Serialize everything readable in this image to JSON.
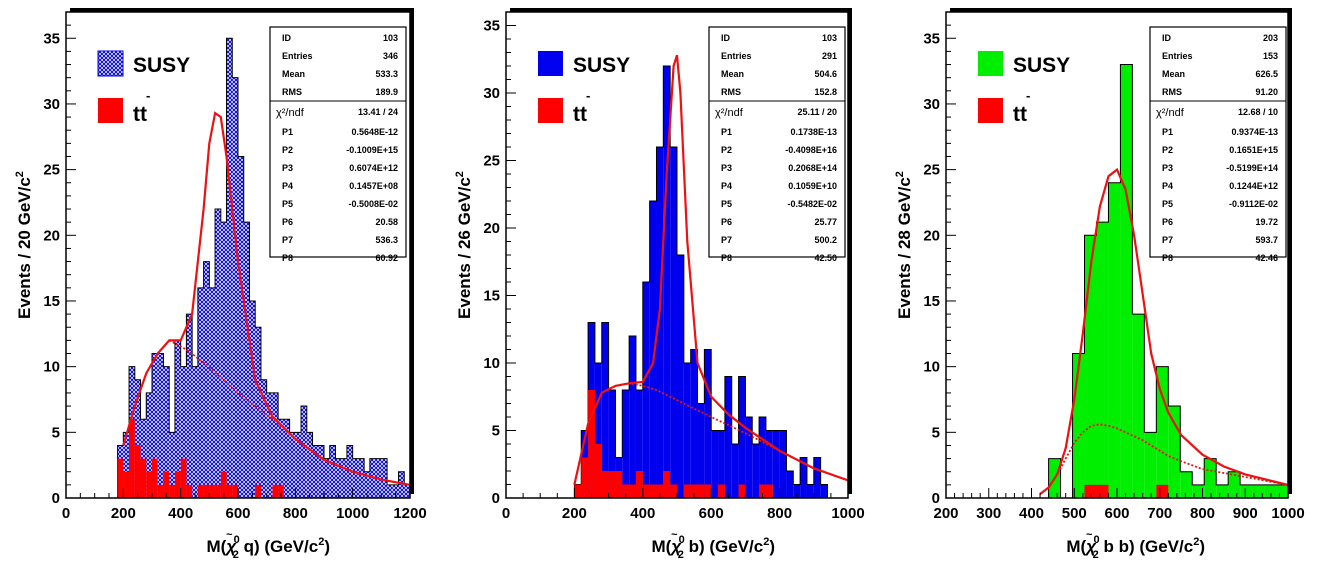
{
  "chart_data": [
    {
      "type": "bar",
      "hist_style": "hatch",
      "susy_color": "#0000ee",
      "ttbar_color": "#ff0000",
      "fit_color": "#ee1111",
      "legend": {
        "susy": "SUSY",
        "ttbar_bar": "-",
        "ttbar": "tt"
      },
      "ylabel": "Events / 20 GeV/c",
      "ylabel_sup": "2",
      "xlabel_parts": [
        "M(",
        "χ",
        "~",
        "0",
        "2",
        " q) (GeV/c",
        "2",
        ")"
      ],
      "xlim": [
        0,
        1200
      ],
      "ylim": [
        0,
        37
      ],
      "xticks": [
        0,
        200,
        400,
        600,
        800,
        1000,
        1200
      ],
      "yticks": [
        0,
        5,
        10,
        15,
        20,
        25,
        30,
        35
      ],
      "bin_width": 20,
      "hist_start": 180,
      "susy_values": [
        4,
        5,
        10,
        9,
        6,
        8,
        11,
        11,
        10,
        5,
        12,
        10,
        14,
        10,
        16,
        18,
        16,
        22,
        21,
        35,
        32,
        26,
        21,
        15,
        13,
        9,
        8,
        8,
        6,
        6,
        5,
        5,
        7,
        5,
        4,
        4,
        3,
        4,
        3,
        3,
        4,
        3,
        3,
        2,
        3,
        3,
        3,
        1,
        1,
        2,
        1,
        1,
        3,
        2,
        1,
        1,
        1,
        2,
        1,
        3,
        1
      ],
      "ttbar_values": [
        3,
        2,
        6,
        4,
        3,
        2,
        3,
        1,
        2,
        1,
        2,
        3,
        1,
        0,
        1,
        1,
        1,
        1,
        2,
        1,
        1,
        0,
        0,
        0,
        1,
        0,
        0,
        1,
        1,
        0,
        0
      ],
      "fit_x": [
        200,
        240,
        280,
        320,
        360,
        400,
        440,
        480,
        500,
        520,
        540,
        560,
        600,
        660,
        720,
        800,
        900,
        1000,
        1100,
        1200
      ],
      "fit_y": [
        4,
        7,
        9.5,
        11,
        12,
        12,
        14,
        22,
        27,
        29.3,
        29,
        26,
        18,
        9,
        6.2,
        4.5,
        2.9,
        2,
        1.4,
        1
      ],
      "bkg_x": [
        360,
        420,
        480,
        540,
        600,
        660,
        720,
        800,
        900,
        1000,
        1100,
        1200
      ],
      "bkg_y": [
        12,
        11.3,
        10.3,
        9.2,
        8,
        7,
        6,
        4.5,
        2.9,
        2,
        1.4,
        1
      ],
      "stats_top": [
        [
          "ID",
          "103"
        ],
        [
          "Entries",
          "346"
        ],
        [
          "Mean",
          "533.3"
        ],
        [
          "RMS",
          "189.9"
        ]
      ],
      "chi2": "13.41  /   24",
      "chi2_label": "χ²/ndf",
      "params": [
        [
          "P1",
          "0.5648E-12"
        ],
        [
          "P2",
          "-0.1009E+15"
        ],
        [
          "P3",
          "0.6074E+12"
        ],
        [
          "P4",
          "0.1457E+08"
        ],
        [
          "P5",
          "-0.5008E-02"
        ],
        [
          "P6",
          "20.58"
        ],
        [
          "P7",
          "536.3"
        ],
        [
          "P8",
          "60.92"
        ]
      ]
    },
    {
      "type": "bar",
      "hist_style": "solid",
      "susy_color": "#0000ee",
      "ttbar_color": "#ff0000",
      "fit_color": "#ee1111",
      "legend": {
        "susy": "SUSY",
        "ttbar_bar": "-",
        "ttbar": "tt"
      },
      "ylabel": "Events / 26 GeV/c",
      "ylabel_sup": "2",
      "xlabel_parts": [
        "M(",
        "χ",
        "~",
        "0",
        "2",
        " b) (GeV/c",
        "2",
        ")"
      ],
      "xlim": [
        0,
        1000
      ],
      "ylim": [
        0,
        36
      ],
      "xticks": [
        0,
        200,
        400,
        600,
        800,
        1000
      ],
      "yticks": [
        0,
        5,
        10,
        15,
        20,
        25,
        30,
        35
      ],
      "bin_width": 20,
      "hist_start": 200,
      "susy_values": [
        1,
        5,
        13,
        10,
        13,
        8,
        3,
        8,
        12,
        8,
        16,
        22,
        26,
        32,
        26,
        18,
        10,
        11,
        7,
        11,
        5,
        5,
        9,
        4,
        9,
        6,
        4,
        6,
        5,
        5,
        5,
        2,
        1,
        3,
        1,
        3,
        1
      ],
      "ttbar_values": [
        1,
        3,
        8,
        4,
        2,
        2,
        2,
        1,
        1,
        2,
        1,
        1,
        1,
        2,
        1,
        0,
        1,
        1,
        1,
        1,
        0,
        1,
        0,
        0,
        1,
        0,
        0,
        1,
        1
      ],
      "fit_x": [
        200,
        240,
        280,
        320,
        360,
        400,
        430,
        450,
        470,
        490,
        500,
        510,
        530,
        560,
        600,
        650,
        700,
        800,
        900,
        1000
      ],
      "fit_y": [
        1,
        5.5,
        7.8,
        8.3,
        8.5,
        8.6,
        10,
        14,
        24,
        32,
        32.8,
        30,
        19,
        10,
        7.5,
        6.2,
        5.2,
        3.5,
        2.2,
        1.3
      ],
      "bkg_x": [
        200,
        240,
        280,
        320,
        360,
        400,
        440,
        480,
        520,
        560,
        600,
        650,
        700,
        800,
        900,
        1000
      ],
      "bkg_y": [
        1,
        5.5,
        7.8,
        8.3,
        8.5,
        8.3,
        8,
        7.5,
        7,
        6.5,
        6,
        5.4,
        4.8,
        3.5,
        2.2,
        1.3
      ],
      "stats_top": [
        [
          "ID",
          "103"
        ],
        [
          "Entries",
          "291"
        ],
        [
          "Mean",
          "504.6"
        ],
        [
          "RMS",
          "152.8"
        ]
      ],
      "chi2": "25.11  /   20",
      "chi2_label": "χ²/ndf",
      "params": [
        [
          "P1",
          "0.1738E-13"
        ],
        [
          "P2",
          "-0.4098E+16"
        ],
        [
          "P3",
          "0.2068E+14"
        ],
        [
          "P4",
          "0.1059E+10"
        ],
        [
          "P5",
          "-0.5482E-02"
        ],
        [
          "P6",
          "25.77"
        ],
        [
          "P7",
          "500.2"
        ],
        [
          "P8",
          "42.50"
        ]
      ]
    },
    {
      "type": "bar",
      "hist_style": "solid",
      "susy_color": "#00ee00",
      "ttbar_color": "#ff0000",
      "fit_color": "#ee1111",
      "legend": {
        "susy": "SUSY",
        "ttbar_bar": "-",
        "ttbar": "tt"
      },
      "ylabel": "Events / 28 GeV/c",
      "ylabel_sup": "2",
      "xlabel_parts": [
        "M(",
        "χ",
        "~",
        "0",
        "2",
        " b b) (GeV/c",
        "2",
        ")"
      ],
      "xlim": [
        200,
        1000
      ],
      "ylim": [
        0,
        37
      ],
      "xticks": [
        200,
        300,
        400,
        500,
        600,
        700,
        800,
        900,
        1000
      ],
      "yticks": [
        0,
        5,
        10,
        15,
        20,
        25,
        30,
        35
      ],
      "bin_width": 28,
      "hist_start": 440,
      "susy_values": [
        3,
        0,
        11,
        20,
        21,
        24,
        33,
        14,
        5,
        10,
        7,
        2,
        1,
        3,
        1,
        2,
        1,
        1,
        1,
        1,
        0,
        1
      ],
      "ttbar_values": [
        0,
        0,
        0,
        1,
        1,
        0,
        0,
        0,
        0,
        1,
        0
      ],
      "fit_x": [
        420,
        440,
        460,
        480,
        500,
        520,
        540,
        560,
        580,
        600,
        620,
        640,
        660,
        680,
        700,
        720,
        750,
        800,
        850,
        900,
        1000
      ],
      "fit_y": [
        0.3,
        0.8,
        1.8,
        3.8,
        7.5,
        12.5,
        18,
        22.2,
        24.5,
        25,
        23.5,
        20,
        15.5,
        11,
        8.3,
        6.5,
        4.8,
        3.3,
        2.4,
        1.8,
        1
      ],
      "bkg_x": [
        420,
        440,
        460,
        480,
        500,
        520,
        540,
        560,
        580,
        600,
        620,
        640,
        660,
        680,
        700,
        720,
        750,
        800,
        850,
        900,
        1000
      ],
      "bkg_y": [
        0.3,
        0.8,
        1.8,
        3,
        4.2,
        5,
        5.5,
        5.6,
        5.5,
        5.3,
        5,
        4.7,
        4.4,
        4,
        3.6,
        3.2,
        2.8,
        2.2,
        1.9,
        1.6,
        1
      ],
      "stats_top": [
        [
          "ID",
          "203"
        ],
        [
          "Entries",
          "153"
        ],
        [
          "Mean",
          "626.5"
        ],
        [
          "RMS",
          "91.20"
        ]
      ],
      "chi2": "12.68  /   10",
      "chi2_label": "χ²/ndf",
      "params": [
        [
          "P1",
          "0.9374E-13"
        ],
        [
          "P2",
          "0.1651E+15"
        ],
        [
          "P3",
          "-0.5199E+14"
        ],
        [
          "P4",
          "0.1244E+12"
        ],
        [
          "P5",
          "-0.9112E-02"
        ],
        [
          "P6",
          "19.72"
        ],
        [
          "P7",
          "593.7"
        ],
        [
          "P8",
          "42.46"
        ]
      ]
    }
  ]
}
